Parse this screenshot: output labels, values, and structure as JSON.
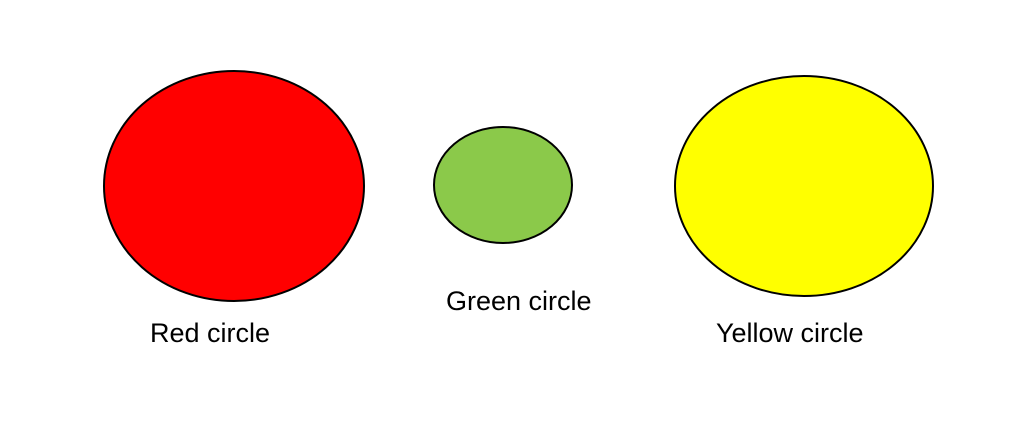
{
  "shapes": [
    {
      "id": "red",
      "label": "Red circle",
      "fill": "#ff0000",
      "stroke": "#000000"
    },
    {
      "id": "green",
      "label": "Green circle",
      "fill": "#8bc94a",
      "stroke": "#000000"
    },
    {
      "id": "yellow",
      "label": "Yellow circle",
      "fill": "#ffff00",
      "stroke": "#000000"
    }
  ]
}
